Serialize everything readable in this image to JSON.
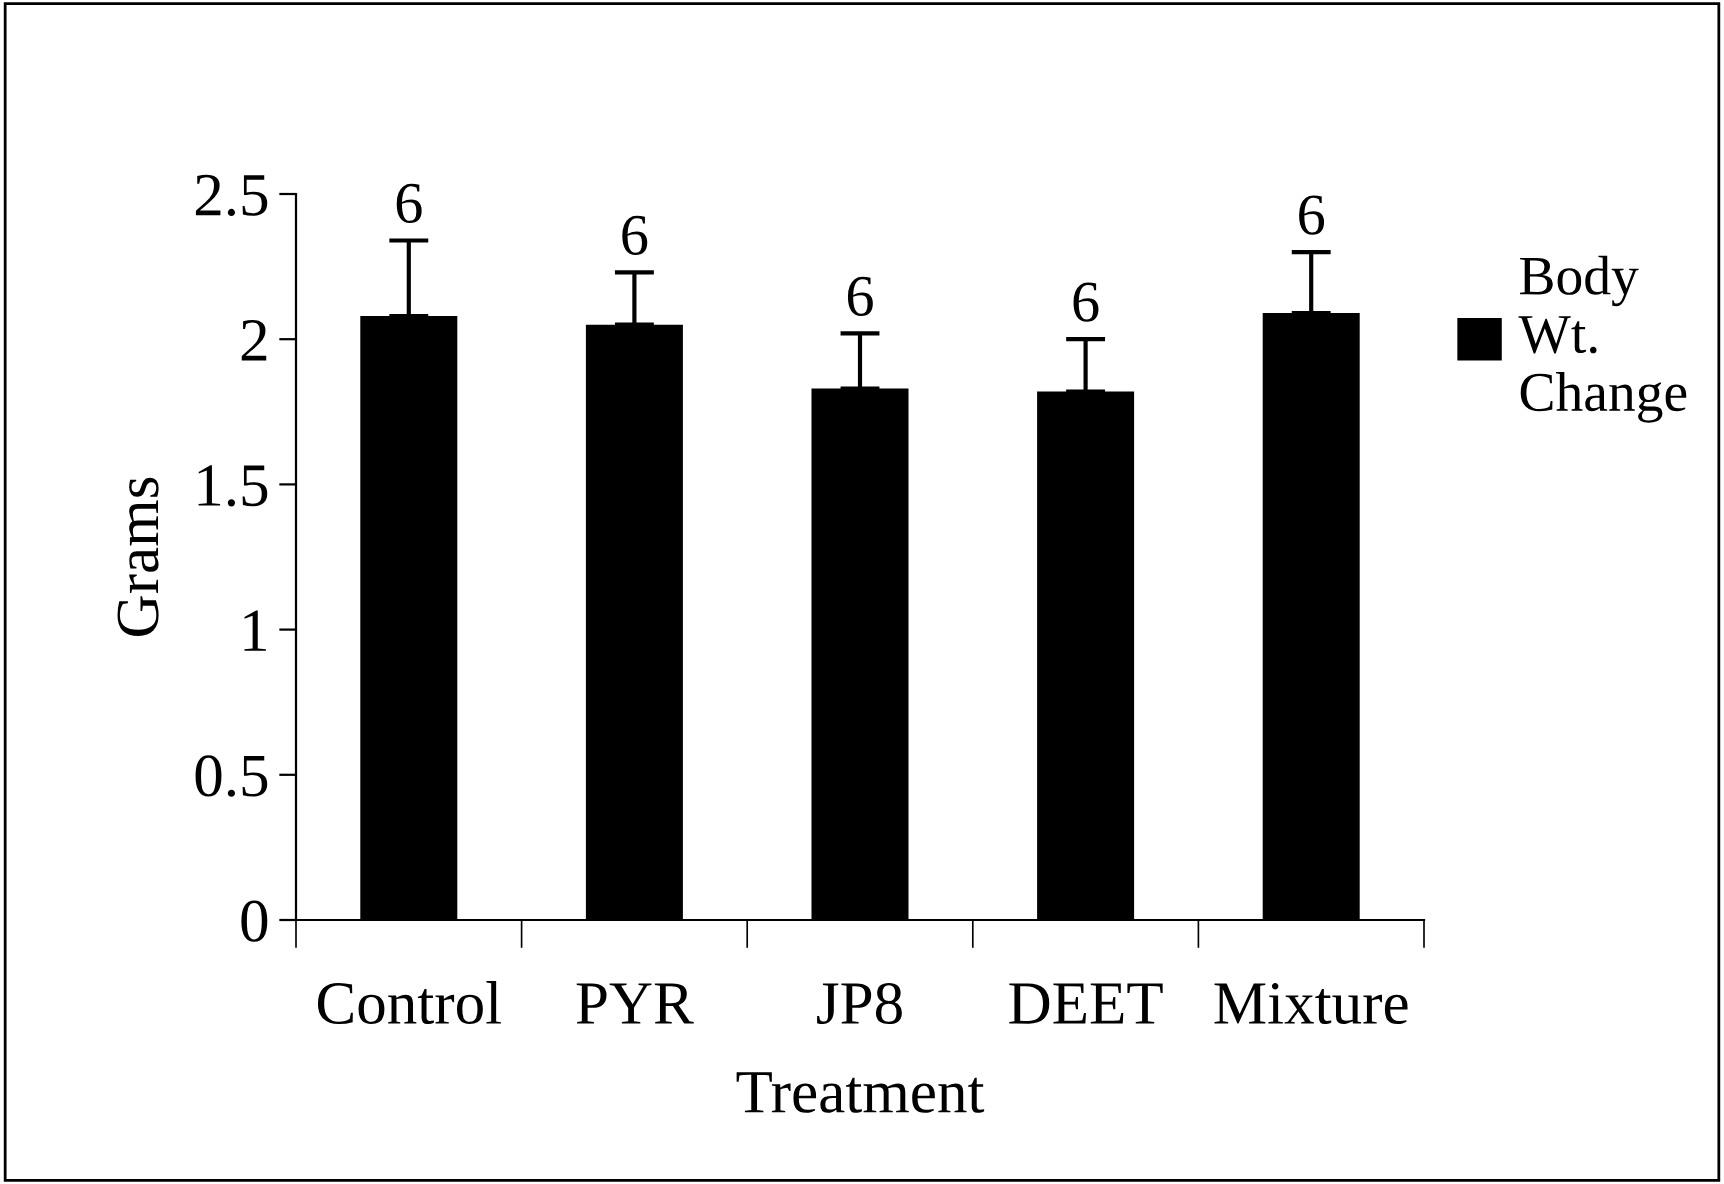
{
  "chart_data": {
    "type": "bar",
    "xlabel": "Treatment",
    "ylabel": "Grams",
    "categories": [
      "Control",
      "PYR",
      "JP8",
      "DEET",
      "Mixture"
    ],
    "series": [
      {
        "name": "Body\nWt.\nChange",
        "color": "#000000",
        "values": [
          2.08,
          2.05,
          1.83,
          1.82,
          2.09
        ],
        "errors": [
          [
            2.08,
            2.34
          ],
          [
            2.05,
            2.23
          ],
          [
            1.83,
            2.02
          ],
          [
            1.82,
            2.0
          ],
          [
            2.09,
            2.3
          ]
        ]
      }
    ],
    "annotations": [
      {
        "text": "6",
        "x": "Control",
        "y": 2.34
      },
      {
        "text": "6",
        "x": "PYR",
        "y": 2.23
      },
      {
        "text": "6",
        "x": "JP8",
        "y": 2.02
      },
      {
        "text": "6",
        "x": "DEET",
        "y": 2.0
      },
      {
        "text": "6",
        "x": "Mixture",
        "y": 2.3
      }
    ],
    "ylim": [
      0,
      2.5
    ],
    "yticks": [
      0,
      0.5,
      1,
      1.5,
      2,
      2.5
    ],
    "grid": false,
    "legend": "right"
  }
}
